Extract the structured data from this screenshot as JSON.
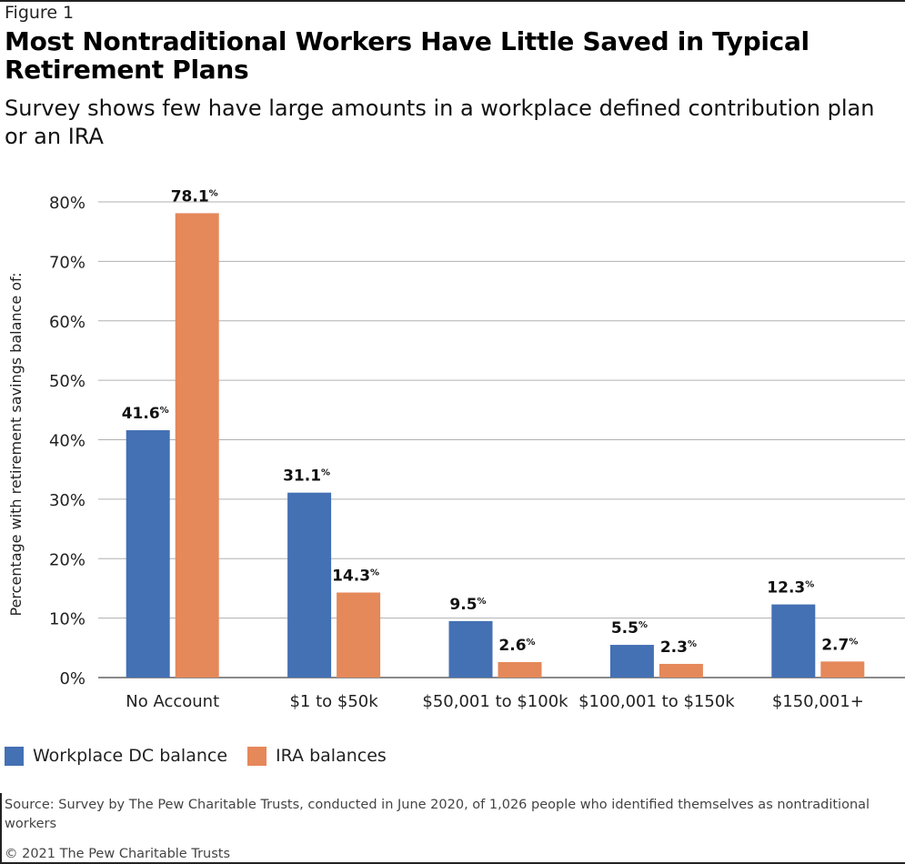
{
  "figure_label": "Figure 1",
  "title": "Most Nontraditional Workers Have Little Saved in Typical Retirement Plans",
  "subtitle": "Survey shows few have large amounts in a workplace defined contribution plan or an IRA",
  "legend": [
    {
      "label": "Workplace DC balance",
      "color": "#4470b4"
    },
    {
      "label": "IRA balances",
      "color": "#e5885a"
    }
  ],
  "source": "Source: Survey by The Pew Charitable Trusts, conducted in June 2020, of 1,026 people who identified themselves as nontraditional workers",
  "copyright": "© 2021 The Pew Charitable Trusts",
  "chart_data": {
    "type": "bar",
    "categories": [
      "No Account",
      "$1 to $50k",
      "$50,001 to $100k",
      "$100,001 to $150k",
      "$150,001+"
    ],
    "series": [
      {
        "name": "Workplace DC balance",
        "color": "#4470b4",
        "values": [
          41.6,
          31.1,
          9.5,
          5.5,
          12.3
        ]
      },
      {
        "name": "IRA balances",
        "color": "#e5885a",
        "values": [
          78.1,
          14.3,
          2.6,
          2.3,
          2.7
        ]
      }
    ],
    "ylabel": "Percentage with retirement savings balance of:",
    "xlabel": "",
    "ylim": [
      0,
      80
    ],
    "yticks": [
      0,
      10,
      20,
      30,
      40,
      50,
      60,
      70,
      80
    ],
    "ytick_suffix": "%",
    "value_suffix": "%",
    "grid": true,
    "legend_position": "bottom-left"
  }
}
